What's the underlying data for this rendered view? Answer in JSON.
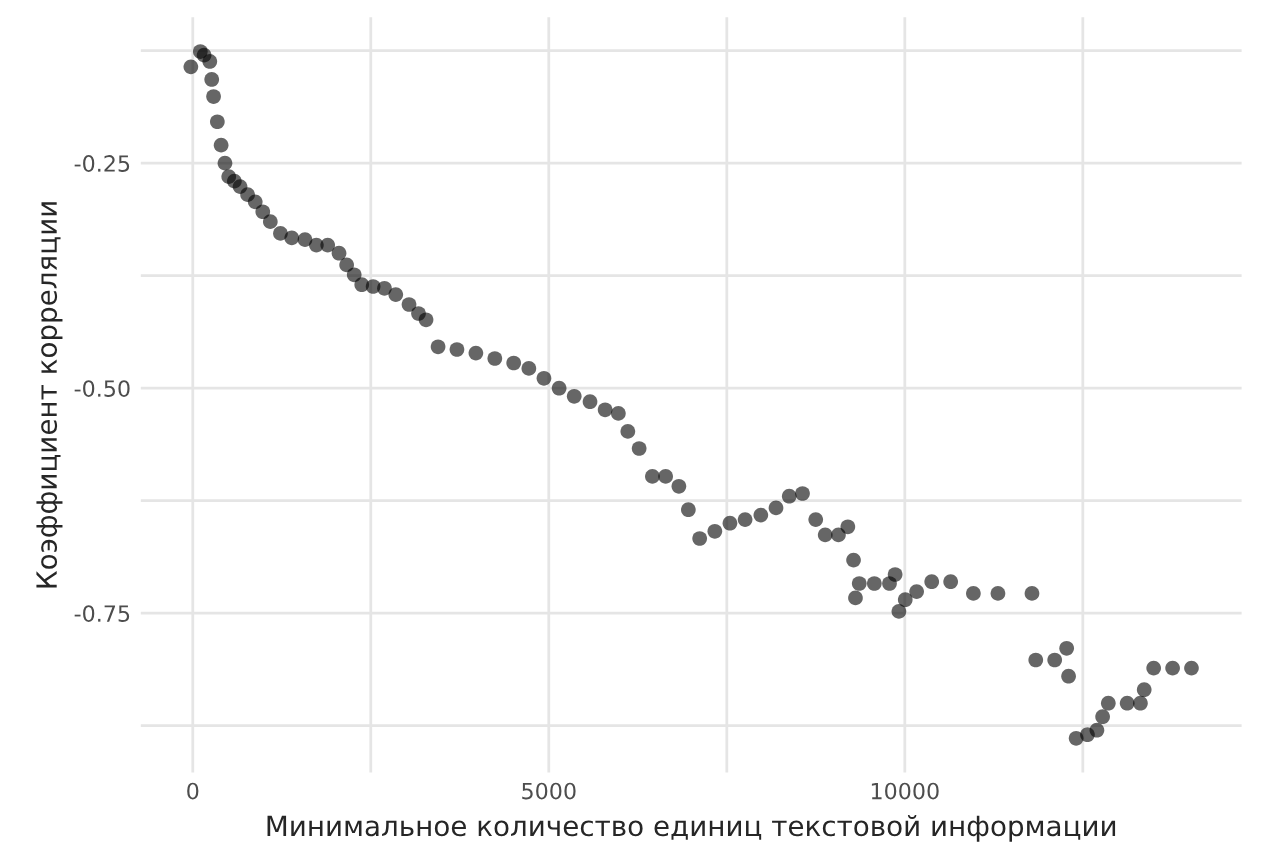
{
  "chart_data": {
    "type": "scatter",
    "xlabel": "Минимальное количество единиц текстовой информации",
    "ylabel": "Коэффициент корреляции",
    "x": [
      -27,
      106,
      159,
      239,
      266,
      292,
      345,
      398,
      452,
      505,
      584,
      664,
      770,
      877,
      983,
      1089,
      1231,
      1390,
      1576,
      1736,
      1895,
      2054,
      2161,
      2267,
      2373,
      2533,
      2692,
      2851,
      3037,
      3170,
      3276,
      3445,
      3710,
      3976,
      4242,
      4507,
      4720,
      4932,
      5145,
      5357,
      5579,
      5791,
      5977,
      6110,
      6269,
      6455,
      6641,
      6827,
      6960,
      7119,
      7332,
      7544,
      7757,
      7978,
      8191,
      8377,
      8563,
      8749,
      8882,
      9068,
      9200,
      9280,
      9307,
      9360,
      9572,
      9785,
      9864,
      9917,
      10006,
      10166,
      10378,
      10644,
      10963,
      11308,
      11786,
      11839,
      12105,
      12273,
      12300,
      12406,
      12565,
      12698,
      12778,
      12858,
      13123,
      13309,
      13362,
      13495,
      13761,
      14026
    ],
    "values": [
      -0.143,
      -0.126,
      -0.13,
      -0.137,
      -0.157,
      -0.176,
      -0.204,
      -0.23,
      -0.25,
      -0.265,
      -0.27,
      -0.276,
      -0.285,
      -0.293,
      -0.304,
      -0.315,
      -0.328,
      -0.333,
      -0.335,
      -0.341,
      -0.341,
      -0.35,
      -0.363,
      -0.374,
      -0.385,
      -0.387,
      -0.389,
      -0.396,
      -0.407,
      -0.417,
      -0.424,
      -0.454,
      -0.457,
      -0.461,
      -0.467,
      -0.472,
      -0.478,
      -0.489,
      -0.5,
      -0.509,
      -0.515,
      -0.524,
      -0.528,
      -0.548,
      -0.567,
      -0.598,
      -0.598,
      -0.609,
      -0.635,
      -0.667,
      -0.659,
      -0.65,
      -0.646,
      -0.641,
      -0.633,
      -0.62,
      -0.617,
      -0.646,
      -0.663,
      -0.663,
      -0.654,
      -0.691,
      -0.733,
      -0.717,
      -0.717,
      -0.717,
      -0.707,
      -0.748,
      -0.735,
      -0.726,
      -0.715,
      -0.715,
      -0.728,
      -0.728,
      -0.728,
      -0.802,
      -0.802,
      -0.789,
      -0.82,
      -0.889,
      -0.885,
      -0.88,
      -0.865,
      -0.85,
      -0.85,
      -0.85,
      -0.835,
      -0.811,
      -0.811,
      -0.811
    ],
    "color": "#000000",
    "marker": "circle",
    "xlim": [
      -730,
      14730
    ],
    "ylim": [
      -0.927,
      -0.088
    ],
    "xticks": [
      0,
      {
        "value": 2500,
        "label": null
      },
      5000,
      {
        "value": 7500,
        "label": null
      },
      10000,
      {
        "value": 12500,
        "label": null
      }
    ],
    "yticks": [
      {
        "value": -0.875,
        "label": null
      },
      {
        "value": -0.75,
        "label": "-0.75"
      },
      {
        "value": -0.625,
        "label": null
      },
      {
        "value": -0.5,
        "label": "-0.50"
      },
      {
        "value": -0.375,
        "label": null
      },
      {
        "value": -0.25,
        "label": "-0.25"
      },
      {
        "value": -0.125,
        "label": null
      }
    ],
    "grid": true,
    "legend": false
  }
}
